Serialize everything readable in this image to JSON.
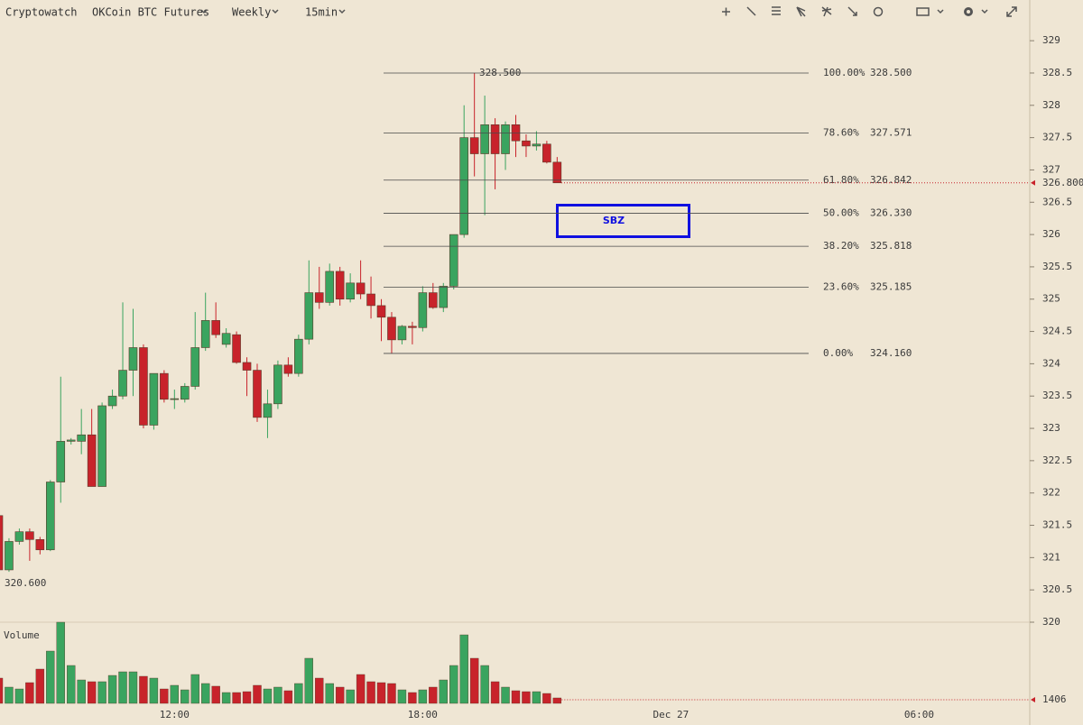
{
  "header": {
    "brand": "Cryptowatch",
    "market": "OKCoin BTC Futures",
    "period": "Weekly",
    "interval": "15min"
  },
  "chart_data": {
    "type": "candlestick",
    "categories": [
      null,
      null,
      null,
      null,
      null,
      null,
      null,
      null,
      null,
      null,
      null,
      null,
      null,
      null,
      null,
      null,
      null,
      "12:00",
      null,
      null,
      null,
      null,
      null,
      null,
      null,
      null,
      null,
      null,
      null,
      null,
      null,
      null,
      null,
      null,
      null,
      null,
      null,
      null,
      null,
      null,
      null,
      "18:00",
      null,
      null,
      null,
      null,
      null,
      null,
      null,
      null,
      null,
      null,
      null,
      null,
      null,
      null,
      null,
      null,
      null,
      null,
      null,
      null,
      null,
      null,
      null,
      "Dec 27",
      null,
      null,
      null,
      null,
      null,
      null,
      null,
      null,
      null,
      null,
      null,
      null,
      null,
      null,
      null,
      null,
      null,
      null,
      null,
      null,
      null,
      null,
      null,
      "06:00"
    ],
    "open": [
      321.65,
      320.81,
      321.25,
      321.4,
      321.28,
      321.12,
      322.17,
      322.8,
      322.8,
      322.9,
      322.1,
      323.35,
      323.5,
      323.9,
      324.25,
      323.05,
      323.85,
      323.45,
      323.45,
      323.65,
      324.25,
      324.67,
      324.3,
      324.45,
      324.02,
      323.9,
      323.17,
      323.38,
      323.98,
      323.85,
      324.38,
      325.1,
      324.95,
      325.43,
      325.0,
      325.25,
      325.08,
      324.9,
      324.72,
      324.37,
      324.58,
      324.56,
      325.1,
      324.87,
      325.2,
      326.0,
      327.5,
      327.25,
      327.7,
      327.25,
      327.7,
      327.45,
      327.37,
      327.4,
      327.12,
      null,
      null,
      null,
      null,
      null,
      null,
      null,
      null,
      null,
      null,
      null,
      null,
      null,
      null,
      null,
      null,
      null,
      null,
      null,
      null,
      null,
      null,
      null,
      null,
      null,
      null,
      null,
      null,
      null,
      null,
      null,
      null,
      null,
      null,
      null
    ],
    "high": [
      321.7,
      321.3,
      321.45,
      321.45,
      321.32,
      322.2,
      323.8,
      322.85,
      323.3,
      323.3,
      323.4,
      323.6,
      324.95,
      324.85,
      324.3,
      323.85,
      323.9,
      323.6,
      323.7,
      324.8,
      325.1,
      324.95,
      324.55,
      324.5,
      324.1,
      324.0,
      323.6,
      324.05,
      324.1,
      324.45,
      325.6,
      325.5,
      325.55,
      325.5,
      325.4,
      325.6,
      325.35,
      325.0,
      324.8,
      324.6,
      324.65,
      325.2,
      325.25,
      325.25,
      326.0,
      328.0,
      328.5,
      328.15,
      327.8,
      327.75,
      327.85,
      327.55,
      327.6,
      327.45,
      327.2,
      null,
      null,
      null,
      null,
      null,
      null,
      null,
      null,
      null,
      null,
      null,
      null,
      null,
      null,
      null,
      null,
      null,
      null,
      null,
      null,
      null,
      null,
      null,
      null,
      null,
      null,
      null,
      null,
      null,
      null,
      null,
      null,
      null,
      null,
      null
    ],
    "low": [
      320.6,
      320.78,
      321.2,
      320.95,
      321.05,
      321.1,
      321.85,
      322.75,
      322.6,
      322.1,
      322.1,
      323.3,
      323.45,
      323.5,
      323.0,
      322.98,
      323.4,
      323.3,
      323.4,
      323.6,
      324.2,
      324.4,
      324.25,
      324.0,
      323.5,
      323.1,
      322.85,
      323.3,
      323.8,
      323.8,
      324.3,
      324.85,
      324.9,
      324.9,
      324.95,
      325.0,
      324.7,
      324.35,
      324.16,
      324.3,
      324.3,
      324.5,
      324.85,
      324.8,
      325.15,
      325.95,
      326.9,
      326.3,
      326.7,
      327.0,
      327.2,
      327.2,
      327.3,
      327.1,
      326.8,
      null,
      null,
      null,
      null,
      null,
      null,
      null,
      null,
      null,
      null,
      null,
      null,
      null,
      null,
      null,
      null,
      null,
      null,
      null,
      null,
      null,
      null,
      null,
      null,
      null,
      null,
      null,
      null,
      null,
      null,
      null,
      null,
      null,
      null,
      null
    ],
    "close": [
      320.81,
      321.25,
      321.4,
      321.28,
      321.12,
      322.17,
      322.8,
      322.82,
      322.9,
      322.1,
      323.35,
      323.5,
      323.9,
      324.25,
      323.05,
      323.85,
      323.45,
      323.46,
      323.65,
      324.25,
      324.67,
      324.45,
      324.47,
      324.02,
      323.9,
      323.17,
      323.38,
      323.98,
      323.85,
      324.38,
      325.1,
      324.95,
      325.43,
      325.0,
      325.25,
      325.08,
      324.9,
      324.72,
      324.37,
      324.58,
      324.56,
      325.1,
      324.87,
      325.2,
      326.0,
      327.5,
      327.25,
      327.7,
      327.25,
      327.7,
      327.45,
      327.37,
      327.4,
      327.12,
      326.8,
      null,
      null,
      null,
      null,
      null,
      null,
      null,
      null,
      null,
      null,
      null,
      null,
      null,
      null,
      null,
      null,
      null,
      null,
      null,
      null,
      null,
      null,
      null,
      null,
      null,
      null,
      null,
      null,
      null,
      null,
      null,
      null,
      null,
      null,
      null
    ],
    "up_color": "#3aa45f",
    "down_color": "#c8232b",
    "ylim": [
      320,
      329.63
    ],
    "yticks": [
      320,
      320.5,
      321,
      321.5,
      322,
      322.5,
      323,
      323.5,
      324,
      324.5,
      325,
      325.5,
      326,
      326.5,
      327,
      327.5,
      328,
      328.5,
      329
    ],
    "markers": [
      {
        "value": 328.5,
        "label": "328.500"
      },
      {
        "value": 320.6,
        "label": "320.600"
      },
      {
        "value": 326.8,
        "label": "326.800"
      }
    ],
    "fibonacci": [
      {
        "ratio": {
          "value": 100,
          "label": "100.00%"
        },
        "price": {
          "value": 328.5,
          "label": "328.500"
        }
      },
      {
        "ratio": {
          "value": 78.6,
          "label": "78.60%"
        },
        "price": {
          "value": 327.571,
          "label": "327.571"
        }
      },
      {
        "ratio": {
          "value": 61.8,
          "label": "61.80%"
        },
        "price": {
          "value": 326.842,
          "label": "326.842"
        }
      },
      {
        "ratio": {
          "value": 50,
          "label": "50.00%"
        },
        "price": {
          "value": 326.33,
          "label": "326.330"
        }
      },
      {
        "ratio": {
          "value": 38.2,
          "label": "38.20%"
        },
        "price": {
          "value": 325.818,
          "label": "325.818"
        }
      },
      {
        "ratio": {
          "value": 23.6,
          "label": "23.60%"
        },
        "price": {
          "value": 325.185,
          "label": "325.185"
        }
      },
      {
        "ratio": {
          "value": 0,
          "label": "0.00%"
        },
        "price": {
          "value": 324.16,
          "label": "324.160"
        }
      }
    ],
    "annotation": "SBZ",
    "volume": {
      "name": "Volume",
      "ylim": [
        0,
        21060
      ],
      "values": [
        6550,
        4210,
        3740,
        5380,
        8890,
        13570,
        21060,
        9830,
        6080,
        5620,
        5620,
        7250,
        8190,
        8190,
        7020,
        6550,
        3740,
        4680,
        3510,
        7490,
        5150,
        4450,
        2810,
        2810,
        3040,
        4680,
        3740,
        4210,
        3280,
        5150,
        11700,
        6550,
        5150,
        4210,
        3510,
        7490,
        5620,
        5380,
        5150,
        3510,
        2810,
        3510,
        4210,
        6080,
        9830,
        17780,
        11700,
        9830,
        5620,
        4210,
        3280,
        3040,
        3040,
        2570,
        1406,
        null,
        null,
        null,
        null,
        null,
        null,
        null,
        null,
        null,
        null,
        null,
        null,
        null,
        null,
        null,
        null,
        null,
        null,
        null,
        null,
        null,
        null,
        null,
        null,
        null,
        null,
        null,
        null,
        null,
        null,
        null,
        null,
        null,
        null,
        null
      ]
    }
  }
}
